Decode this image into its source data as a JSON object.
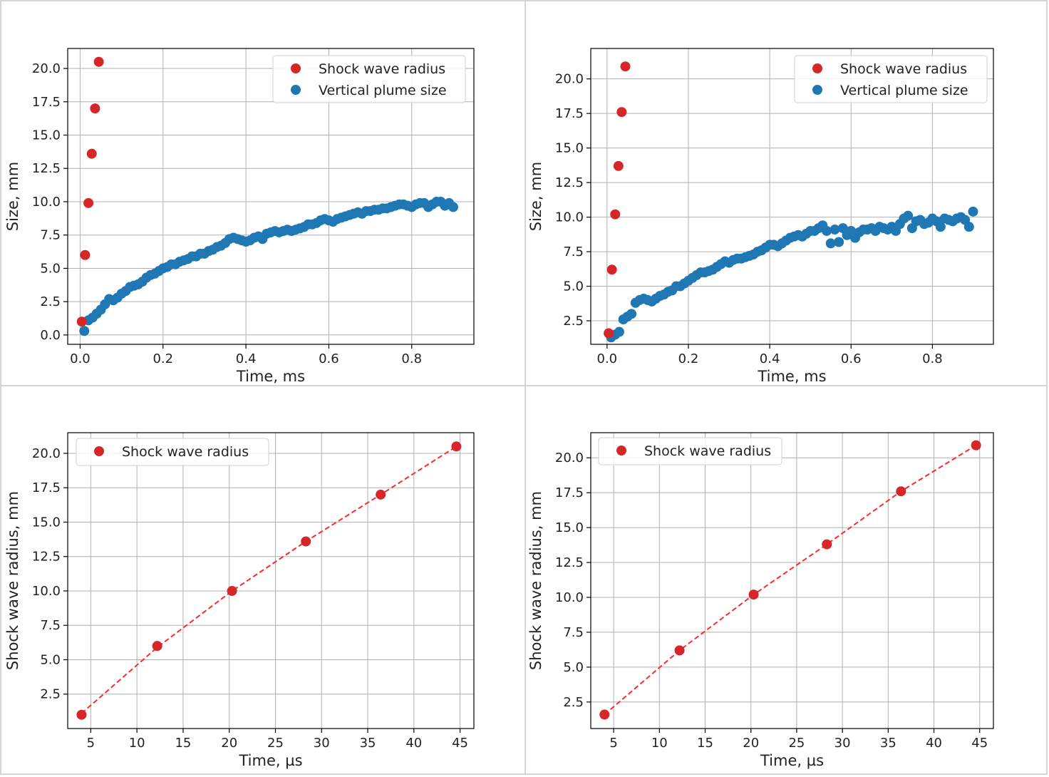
{
  "colors": {
    "shock": "#d62728",
    "plume": "#1f77b4",
    "fit": "#ff2a2a",
    "grid": "#b0b0b0",
    "divider": "#c8c8c8"
  },
  "chart_data": [
    {
      "type": "scatter",
      "xlabel": "Time, ms",
      "ylabel": "Size, mm",
      "xlim": [
        -0.03,
        0.95
      ],
      "ylim": [
        -0.7,
        21.5
      ],
      "xticks": [
        "0.0",
        "0.2",
        "0.4",
        "0.6",
        "0.8"
      ],
      "xtick_values": [
        0,
        0.2,
        0.4,
        0.6,
        0.8
      ],
      "yticks": [
        "0.0",
        "2.5",
        "5.0",
        "7.5",
        "10.0",
        "12.5",
        "15.0",
        "17.5",
        "20.0"
      ],
      "ytick_values": [
        0,
        2.5,
        5,
        7.5,
        10,
        12.5,
        15,
        17.5,
        20
      ],
      "grid": true,
      "legend": "top-right",
      "series": [
        {
          "name": "Shock wave radius",
          "color_key": "shock",
          "x": [
            0.004,
            0.012,
            0.02,
            0.028,
            0.036,
            0.045
          ],
          "y": [
            1.0,
            6.0,
            9.9,
            13.6,
            17.0,
            20.5
          ]
        },
        {
          "name": "Vertical plume size",
          "color_key": "plume",
          "x": [
            0.01,
            0.02,
            0.03,
            0.04,
            0.05,
            0.06,
            0.07,
            0.08,
            0.09,
            0.1,
            0.11,
            0.12,
            0.13,
            0.14,
            0.15,
            0.16,
            0.17,
            0.18,
            0.19,
            0.2,
            0.21,
            0.22,
            0.23,
            0.24,
            0.25,
            0.26,
            0.27,
            0.28,
            0.29,
            0.3,
            0.31,
            0.32,
            0.33,
            0.34,
            0.35,
            0.36,
            0.37,
            0.38,
            0.39,
            0.4,
            0.41,
            0.42,
            0.43,
            0.44,
            0.45,
            0.46,
            0.47,
            0.48,
            0.49,
            0.5,
            0.51,
            0.52,
            0.53,
            0.54,
            0.55,
            0.56,
            0.57,
            0.58,
            0.59,
            0.6,
            0.61,
            0.62,
            0.63,
            0.64,
            0.65,
            0.66,
            0.67,
            0.68,
            0.69,
            0.7,
            0.71,
            0.72,
            0.73,
            0.74,
            0.75,
            0.76,
            0.77,
            0.78,
            0.79,
            0.8,
            0.81,
            0.82,
            0.83,
            0.84,
            0.85,
            0.86,
            0.87,
            0.88,
            0.89,
            0.9
          ],
          "y": [
            0.3,
            1.1,
            1.3,
            1.6,
            1.9,
            2.3,
            2.7,
            2.6,
            2.8,
            3.1,
            3.3,
            3.6,
            3.7,
            3.8,
            4.0,
            4.3,
            4.5,
            4.6,
            4.8,
            5.0,
            5.1,
            5.3,
            5.3,
            5.5,
            5.6,
            5.7,
            5.9,
            5.9,
            6.1,
            6.1,
            6.3,
            6.4,
            6.6,
            6.7,
            6.9,
            7.2,
            7.3,
            7.2,
            7.1,
            7.0,
            7.1,
            7.3,
            7.4,
            7.2,
            7.6,
            7.7,
            7.8,
            7.7,
            7.8,
            7.9,
            7.8,
            7.9,
            8.0,
            8.1,
            8.3,
            8.3,
            8.4,
            8.6,
            8.7,
            8.6,
            8.5,
            8.7,
            8.8,
            8.9,
            9.0,
            9.1,
            9.2,
            9.1,
            9.3,
            9.3,
            9.4,
            9.4,
            9.5,
            9.5,
            9.6,
            9.7,
            9.8,
            9.8,
            9.7,
            9.6,
            9.8,
            9.9,
            9.9,
            9.6,
            9.8,
            10.0,
            10.0,
            9.7,
            9.9,
            9.6
          ]
        }
      ]
    },
    {
      "type": "scatter",
      "xlabel": "Time, ms",
      "ylabel": "Size, mm",
      "xlim": [
        -0.04,
        0.95
      ],
      "ylim": [
        0.8,
        22.2
      ],
      "xticks": [
        "0.0",
        "0.2",
        "0.4",
        "0.6",
        "0.8"
      ],
      "xtick_values": [
        0,
        0.2,
        0.4,
        0.6,
        0.8
      ],
      "yticks": [
        "2.5",
        "5.0",
        "7.5",
        "10.0",
        "12.5",
        "15.0",
        "17.5",
        "20.0"
      ],
      "ytick_values": [
        2.5,
        5,
        7.5,
        10,
        12.5,
        15,
        17.5,
        20
      ],
      "grid": true,
      "legend": "top-right",
      "series": [
        {
          "name": "Shock wave radius",
          "color_key": "shock",
          "x": [
            0.004,
            0.012,
            0.02,
            0.028,
            0.036,
            0.045
          ],
          "y": [
            1.6,
            6.2,
            10.2,
            13.7,
            17.6,
            20.9
          ]
        },
        {
          "name": "Vertical plume size",
          "color_key": "plume",
          "x": [
            0.01,
            0.02,
            0.03,
            0.04,
            0.05,
            0.06,
            0.07,
            0.08,
            0.09,
            0.1,
            0.11,
            0.12,
            0.13,
            0.14,
            0.15,
            0.16,
            0.17,
            0.18,
            0.19,
            0.2,
            0.21,
            0.22,
            0.23,
            0.24,
            0.25,
            0.26,
            0.27,
            0.28,
            0.29,
            0.3,
            0.31,
            0.32,
            0.33,
            0.34,
            0.35,
            0.36,
            0.37,
            0.38,
            0.39,
            0.4,
            0.41,
            0.42,
            0.43,
            0.44,
            0.45,
            0.46,
            0.47,
            0.48,
            0.49,
            0.5,
            0.51,
            0.52,
            0.53,
            0.54,
            0.55,
            0.56,
            0.57,
            0.58,
            0.59,
            0.6,
            0.61,
            0.62,
            0.63,
            0.64,
            0.65,
            0.66,
            0.67,
            0.68,
            0.69,
            0.7,
            0.71,
            0.72,
            0.73,
            0.74,
            0.75,
            0.76,
            0.77,
            0.78,
            0.79,
            0.8,
            0.81,
            0.82,
            0.83,
            0.84,
            0.85,
            0.86,
            0.87,
            0.88,
            0.89,
            0.9
          ],
          "y": [
            1.3,
            1.5,
            1.7,
            2.6,
            2.8,
            3.0,
            3.8,
            4.0,
            4.1,
            4.0,
            3.9,
            4.1,
            4.3,
            4.4,
            4.6,
            4.7,
            5.0,
            5.0,
            5.2,
            5.4,
            5.6,
            5.8,
            6.0,
            6.0,
            6.1,
            6.2,
            6.4,
            6.6,
            6.8,
            6.7,
            6.9,
            7.0,
            7.0,
            7.1,
            7.2,
            7.3,
            7.5,
            7.6,
            7.8,
            8.0,
            8.0,
            7.9,
            8.1,
            8.3,
            8.5,
            8.6,
            8.7,
            8.6,
            8.8,
            9.0,
            9.0,
            9.2,
            9.4,
            9.0,
            8.1,
            9.1,
            8.2,
            9.2,
            8.7,
            9.0,
            8.5,
            8.9,
            9.1,
            9.1,
            9.2,
            9.0,
            9.3,
            9.2,
            9.1,
            9.3,
            9.0,
            9.5,
            9.9,
            10.1,
            9.2,
            9.7,
            9.8,
            9.5,
            9.6,
            9.9,
            9.7,
            9.3,
            9.9,
            9.8,
            9.7,
            9.9,
            10.0,
            9.8,
            9.3,
            10.4
          ]
        }
      ]
    },
    {
      "type": "scatter",
      "xlabel": "Time, µs",
      "ylabel": "Shock wave radius, mm",
      "xlim": [
        2.5,
        46.5
      ],
      "ylim": [
        0.0,
        21.5
      ],
      "xticks": [
        "5",
        "10",
        "15",
        "20",
        "25",
        "30",
        "35",
        "40",
        "45"
      ],
      "xtick_values": [
        5,
        10,
        15,
        20,
        25,
        30,
        35,
        40,
        45
      ],
      "yticks": [
        "2.5",
        "5.0",
        "7.5",
        "10.0",
        "12.5",
        "15.0",
        "17.5",
        "20.0"
      ],
      "ytick_values": [
        2.5,
        5,
        7.5,
        10,
        12.5,
        15,
        17.5,
        20
      ],
      "grid": true,
      "legend": "top-left",
      "series": [
        {
          "name": "Shock wave radius",
          "color_key": "shock",
          "x": [
            4.0,
            12.2,
            20.3,
            28.3,
            36.4,
            44.6
          ],
          "y": [
            1.0,
            6.0,
            10.0,
            13.6,
            17.0,
            20.5
          ]
        }
      ],
      "fit": {
        "x": [
          4.0,
          12.2,
          20.3,
          28.3,
          36.4,
          44.6
        ],
        "y": [
          1.1,
          5.9,
          10.0,
          13.6,
          17.0,
          20.5
        ]
      }
    },
    {
      "type": "scatter",
      "xlabel": "Time, µs",
      "ylabel": "Shock wave radius, mm",
      "xlim": [
        2.5,
        46.5
      ],
      "ylim": [
        0.6,
        21.8
      ],
      "xticks": [
        "5",
        "10",
        "15",
        "20",
        "25",
        "30",
        "35",
        "40",
        "45"
      ],
      "xtick_values": [
        5,
        10,
        15,
        20,
        25,
        30,
        35,
        40,
        45
      ],
      "yticks": [
        "2.5",
        "5.0",
        "7.5",
        "10.0",
        "12.5",
        "15.0",
        "17.5",
        "20.0"
      ],
      "ytick_values": [
        2.5,
        5,
        7.5,
        10,
        12.5,
        15,
        17.5,
        20
      ],
      "grid": true,
      "legend": "top-left",
      "series": [
        {
          "name": "Shock wave radius",
          "color_key": "shock",
          "x": [
            4.0,
            12.2,
            20.3,
            28.3,
            36.4,
            44.6
          ],
          "y": [
            1.6,
            6.2,
            10.2,
            13.8,
            17.6,
            20.9
          ]
        }
      ],
      "fit": {
        "x": [
          4.0,
          12.2,
          20.3,
          28.3,
          36.4,
          44.6
        ],
        "y": [
          1.6,
          6.2,
          10.2,
          13.8,
          17.6,
          20.9
        ]
      }
    }
  ]
}
